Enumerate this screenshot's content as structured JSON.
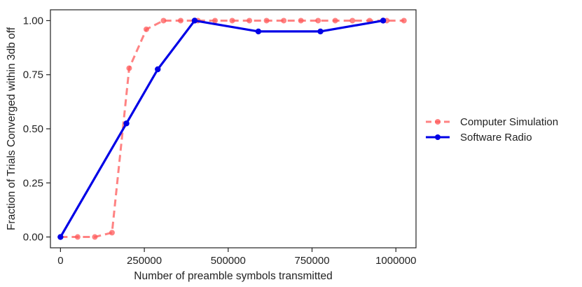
{
  "chart_data": {
    "type": "line",
    "title": "",
    "xlabel": "Number of preamble symbols transmitted",
    "ylabel": "Fraction of Trials Converged within 3db off",
    "xlim": [
      -30000,
      1060000
    ],
    "ylim": [
      -0.05,
      1.05
    ],
    "x_ticks": [
      0,
      250000,
      500000,
      750000,
      1000000
    ],
    "x_tick_labels": [
      "0",
      "250000",
      "500000",
      "750000",
      "1000000"
    ],
    "y_ticks": [
      0.0,
      0.25,
      0.5,
      0.75,
      1.0
    ],
    "y_tick_labels": [
      "0.00",
      "0.25",
      "0.50",
      "0.75",
      "1.00"
    ],
    "grid": false,
    "legend_position": "outside-right",
    "series": [
      {
        "name": "Computer Simulation",
        "color": "#ff5a5a",
        "style": "dashed",
        "marker": "circle",
        "x": [
          0,
          51200,
          102400,
          153600,
          204800,
          256000,
          307200,
          358400,
          409600,
          460800,
          512000,
          563200,
          614400,
          665600,
          716800,
          768000,
          819200,
          870400,
          921600,
          972800,
          1024000
        ],
        "y": [
          0.0,
          0.0,
          0.0,
          0.02,
          0.78,
          0.96,
          1.0,
          1.0,
          1.0,
          1.0,
          1.0,
          1.0,
          1.0,
          1.0,
          1.0,
          1.0,
          1.0,
          1.0,
          1.0,
          1.0,
          1.0
        ]
      },
      {
        "name": "Software Radio",
        "color": "#0000e6",
        "style": "solid",
        "marker": "circle",
        "x": [
          0,
          196608,
          290000,
          400000,
          590000,
          775000,
          962000
        ],
        "y": [
          0.0,
          0.525,
          0.775,
          1.0,
          0.95,
          0.95,
          1.0
        ]
      }
    ]
  }
}
